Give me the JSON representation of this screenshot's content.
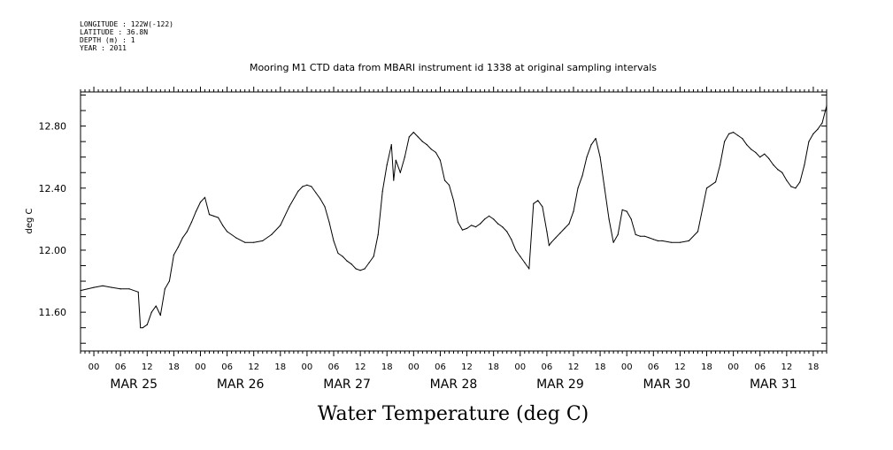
{
  "header": {
    "longitude": "LONGITUDE : 122W(-122)",
    "latitude": "LATITUDE : 36.8N",
    "depth": "DEPTH (m) : 1",
    "year": "YEAR : 2011"
  },
  "chart_data": {
    "type": "line",
    "title": "Mooring M1 CTD data from MBARI instrument id 1338 at original sampling intervals",
    "xlabel": "Water Temperature (deg C)",
    "ylabel": "deg C",
    "ylim": [
      11.35,
      13.02
    ],
    "yticks": [
      11.6,
      12.0,
      12.4,
      12.8
    ],
    "ytick_labels": [
      "11.60",
      "12.00",
      "12.40",
      "12.80"
    ],
    "xlim_hours": [
      -3,
      165
    ],
    "hour_tick_labels": [
      "00",
      "06",
      "12",
      "18",
      "00",
      "06",
      "12",
      "18",
      "00",
      "06",
      "12",
      "18",
      "00",
      "06",
      "12",
      "18",
      "00",
      "06",
      "12",
      "18",
      "00",
      "06",
      "12",
      "18",
      "00",
      "06",
      "12",
      "18"
    ],
    "day_labels": [
      "MAR 25",
      "MAR 26",
      "MAR 27",
      "MAR 28",
      "MAR 29",
      "MAR 30",
      "MAR 31"
    ],
    "grid": false,
    "series": [
      {
        "x": [
          -3,
          0,
          2,
          4,
          6,
          8,
          10,
          10.5,
          11,
          12,
          13,
          14,
          15,
          16,
          17,
          18,
          19,
          20,
          21,
          22,
          23,
          24,
          25,
          26,
          27,
          28,
          29,
          30,
          32,
          34,
          36,
          38,
          40,
          42,
          44,
          46,
          47,
          48,
          49,
          50,
          51,
          52,
          53,
          54,
          55,
          56,
          57,
          58,
          59,
          60,
          61,
          62,
          63,
          64,
          65,
          66,
          67,
          67.5,
          68,
          69,
          70,
          71,
          72,
          73,
          74,
          75,
          76,
          77,
          78,
          79,
          80,
          81,
          82,
          83,
          84,
          85,
          86,
          87,
          88,
          89,
          90,
          91,
          92,
          93,
          94,
          95,
          96,
          97,
          98,
          99,
          100,
          101,
          102,
          102.5,
          103,
          104,
          105,
          106,
          107,
          108,
          109,
          110,
          111,
          112,
          113,
          114,
          115,
          116,
          117,
          118,
          119,
          120,
          121,
          122,
          123,
          124,
          125,
          126,
          127,
          128,
          130,
          132,
          134,
          136,
          138,
          140,
          141,
          142,
          143,
          144,
          145,
          146,
          147,
          148,
          149,
          150,
          151,
          152,
          153,
          154,
          155,
          156,
          157,
          158,
          159,
          160,
          161,
          162,
          163,
          164,
          165
        ],
        "values": [
          11.74,
          11.76,
          11.77,
          11.76,
          11.75,
          11.75,
          11.73,
          11.5,
          11.5,
          11.52,
          11.6,
          11.64,
          11.58,
          11.75,
          11.8,
          11.97,
          12.02,
          12.08,
          12.12,
          12.18,
          12.25,
          12.31,
          12.34,
          12.23,
          12.22,
          12.21,
          12.16,
          12.12,
          12.08,
          12.05,
          12.05,
          12.06,
          12.1,
          12.16,
          12.28,
          12.38,
          12.41,
          12.42,
          12.41,
          12.37,
          12.33,
          12.28,
          12.18,
          12.06,
          11.98,
          11.96,
          11.93,
          11.91,
          11.88,
          11.87,
          11.88,
          11.92,
          11.96,
          12.1,
          12.38,
          12.55,
          12.68,
          12.45,
          12.58,
          12.5,
          12.6,
          12.73,
          12.76,
          12.73,
          12.7,
          12.68,
          12.65,
          12.63,
          12.58,
          12.45,
          12.42,
          12.32,
          12.18,
          12.13,
          12.14,
          12.16,
          12.15,
          12.17,
          12.2,
          12.22,
          12.2,
          12.17,
          12.15,
          12.12,
          12.07,
          12.0,
          11.96,
          11.92,
          11.88,
          12.3,
          12.32,
          12.28,
          12.12,
          12.03,
          12.05,
          12.08,
          12.11,
          12.14,
          12.17,
          12.25,
          12.4,
          12.48,
          12.6,
          12.68,
          12.72,
          12.6,
          12.4,
          12.2,
          12.05,
          12.1,
          12.26,
          12.25,
          12.2,
          12.1,
          12.09,
          12.09,
          12.08,
          12.07,
          12.06,
          12.06,
          12.05,
          12.05,
          12.06,
          12.12,
          12.4,
          12.44,
          12.55,
          12.7,
          12.75,
          12.76,
          12.74,
          12.72,
          12.68,
          12.65,
          12.63,
          12.6,
          12.62,
          12.59,
          12.55,
          12.52,
          12.5,
          12.45,
          12.41,
          12.4,
          12.44,
          12.55,
          12.7,
          12.75,
          12.78,
          12.82,
          12.93
        ]
      }
    ]
  }
}
